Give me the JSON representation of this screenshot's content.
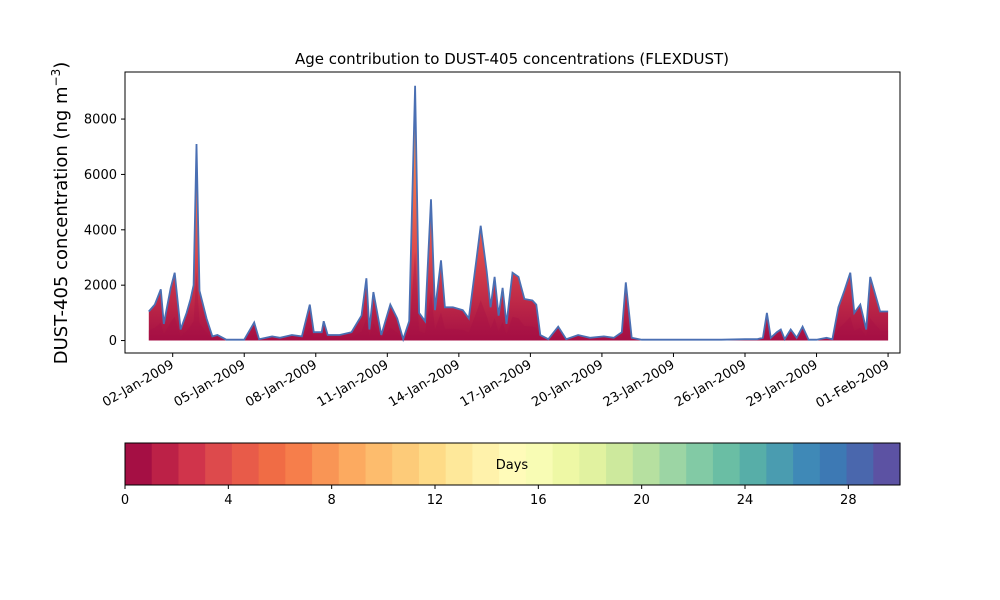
{
  "chart_data": {
    "type": "area",
    "title": "Age contribution to DUST-405 concentrations (FLEXDUST)",
    "ylabel": "DUST-405 concentration (ng m",
    "ylabel_sup": "−3",
    "ylabel_close": ")",
    "ylim": [
      -450,
      9700
    ],
    "xlim": [
      "2008-12-31",
      "2009-02-01T12:00"
    ],
    "yticks": [
      0,
      2000,
      4000,
      6000,
      8000
    ],
    "xticks": [
      "02-Jan-2009",
      "05-Jan-2009",
      "08-Jan-2009",
      "11-Jan-2009",
      "14-Jan-2009",
      "17-Jan-2009",
      "20-Jan-2009",
      "23-Jan-2009",
      "26-Jan-2009",
      "29-Jan-2009",
      "01-Feb-2009"
    ],
    "xtick_dates": [
      "2009-01-02",
      "2009-01-05",
      "2009-01-08",
      "2009-01-11",
      "2009-01-14",
      "2009-01-17",
      "2009-01-20",
      "2009-01-23",
      "2009-01-26",
      "2009-01-29",
      "2009-02-01"
    ],
    "series_total": [
      [
        "2009-01-01T00:00",
        1050
      ],
      [
        "2009-01-01T06:00",
        1300
      ],
      [
        "2009-01-01T12:00",
        1850
      ],
      [
        "2009-01-01T15:00",
        600
      ],
      [
        "2009-01-01T22:00",
        1900
      ],
      [
        "2009-01-02T02:00",
        2450
      ],
      [
        "2009-01-02T08:00",
        400
      ],
      [
        "2009-01-02T14:00",
        1000
      ],
      [
        "2009-01-02T18:00",
        1500
      ],
      [
        "2009-01-02T21:00",
        2000
      ],
      [
        "2009-01-03T00:00",
        7100
      ],
      [
        "2009-01-03T03:00",
        1800
      ],
      [
        "2009-01-03T10:00",
        800
      ],
      [
        "2009-01-03T16:00",
        150
      ],
      [
        "2009-01-03T21:00",
        200
      ],
      [
        "2009-01-04T06:00",
        30
      ],
      [
        "2009-01-05T00:00",
        30
      ],
      [
        "2009-01-05T10:00",
        650
      ],
      [
        "2009-01-05T15:00",
        50
      ],
      [
        "2009-01-06T04:00",
        150
      ],
      [
        "2009-01-06T12:00",
        100
      ],
      [
        "2009-01-07T00:00",
        200
      ],
      [
        "2009-01-07T10:00",
        150
      ],
      [
        "2009-01-07T18:00",
        1300
      ],
      [
        "2009-01-07T22:00",
        300
      ],
      [
        "2009-01-08T06:00",
        300
      ],
      [
        "2009-01-08T08:00",
        700
      ],
      [
        "2009-01-08T12:00",
        200
      ],
      [
        "2009-01-09T00:00",
        200
      ],
      [
        "2009-01-09T12:00",
        300
      ],
      [
        "2009-01-09T22:00",
        900
      ],
      [
        "2009-01-10T03:00",
        2250
      ],
      [
        "2009-01-10T06:00",
        400
      ],
      [
        "2009-01-10T10:00",
        1750
      ],
      [
        "2009-01-10T18:00",
        200
      ],
      [
        "2009-01-11T03:00",
        1300
      ],
      [
        "2009-01-11T10:00",
        800
      ],
      [
        "2009-01-11T16:00",
        50
      ],
      [
        "2009-01-11T22:00",
        700
      ],
      [
        "2009-01-12T04:00",
        9200
      ],
      [
        "2009-01-12T08:00",
        1000
      ],
      [
        "2009-01-12T14:00",
        700
      ],
      [
        "2009-01-12T20:00",
        5100
      ],
      [
        "2009-01-13T00:00",
        1100
      ],
      [
        "2009-01-13T06:00",
        2900
      ],
      [
        "2009-01-13T10:00",
        1200
      ],
      [
        "2009-01-13T18:00",
        1200
      ],
      [
        "2009-01-14T04:00",
        1100
      ],
      [
        "2009-01-14T10:00",
        800
      ],
      [
        "2009-01-14T18:00",
        3000
      ],
      [
        "2009-01-14T22:00",
        4150
      ],
      [
        "2009-01-15T04:00",
        2500
      ],
      [
        "2009-01-15T08:00",
        1200
      ],
      [
        "2009-01-15T12:00",
        2300
      ],
      [
        "2009-01-15T16:00",
        900
      ],
      [
        "2009-01-15T20:00",
        1900
      ],
      [
        "2009-01-16T00:00",
        600
      ],
      [
        "2009-01-16T06:00",
        2450
      ],
      [
        "2009-01-16T12:00",
        2300
      ],
      [
        "2009-01-16T18:00",
        1500
      ],
      [
        "2009-01-17T02:00",
        1450
      ],
      [
        "2009-01-17T06:00",
        1300
      ],
      [
        "2009-01-17T10:00",
        200
      ],
      [
        "2009-01-17T18:00",
        50
      ],
      [
        "2009-01-18T04:00",
        500
      ],
      [
        "2009-01-18T12:00",
        50
      ],
      [
        "2009-01-19T00:00",
        200
      ],
      [
        "2009-01-19T12:00",
        100
      ],
      [
        "2009-01-20T02:00",
        150
      ],
      [
        "2009-01-20T12:00",
        100
      ],
      [
        "2009-01-20T20:00",
        300
      ],
      [
        "2009-01-21T00:00",
        2100
      ],
      [
        "2009-01-21T06:00",
        100
      ],
      [
        "2009-01-21T16:00",
        30
      ],
      [
        "2009-01-22T00:00",
        30
      ],
      [
        "2009-01-24T00:00",
        30
      ],
      [
        "2009-01-25T00:00",
        30
      ],
      [
        "2009-01-26T00:00",
        50
      ],
      [
        "2009-01-26T12:00",
        50
      ],
      [
        "2009-01-26T18:00",
        100
      ],
      [
        "2009-01-26T22:00",
        1000
      ],
      [
        "2009-01-27T02:00",
        100
      ],
      [
        "2009-01-27T08:00",
        300
      ],
      [
        "2009-01-27T12:00",
        400
      ],
      [
        "2009-01-27T16:00",
        50
      ],
      [
        "2009-01-27T22:00",
        400
      ],
      [
        "2009-01-28T04:00",
        100
      ],
      [
        "2009-01-28T10:00",
        500
      ],
      [
        "2009-01-28T16:00",
        30
      ],
      [
        "2009-01-29T00:00",
        30
      ],
      [
        "2009-01-29T10:00",
        100
      ],
      [
        "2009-01-29T16:00",
        50
      ],
      [
        "2009-01-29T22:00",
        1200
      ],
      [
        "2009-01-30T04:00",
        1800
      ],
      [
        "2009-01-30T10:00",
        2450
      ],
      [
        "2009-01-30T14:00",
        1000
      ],
      [
        "2009-01-30T20:00",
        1300
      ],
      [
        "2009-01-31T02:00",
        400
      ],
      [
        "2009-01-31T06:00",
        2300
      ],
      [
        "2009-01-31T10:00",
        1800
      ],
      [
        "2009-01-31T16:00",
        1050
      ],
      [
        "2009-02-01T00:00",
        1050
      ]
    ],
    "line_color": "#4a6fb3",
    "colorbar": {
      "label": "Days",
      "range": [
        0,
        30
      ],
      "ticks": [
        0,
        4,
        8,
        12,
        16,
        20,
        24,
        28
      ],
      "colors": [
        "#a50f44",
        "#bc2147",
        "#d0344b",
        "#dd4a4c",
        "#e85b49",
        "#f06c45",
        "#f67e4b",
        "#f99555",
        "#fcaa60",
        "#fdbc6d",
        "#fdcb79",
        "#fedb87",
        "#fee89a",
        "#fff2ab",
        "#fffbb9",
        "#f8fcb4",
        "#eef8a5",
        "#e1f2a0",
        "#cde99d",
        "#b6e0a0",
        "#9cd5a4",
        "#82caa5",
        "#6abea4",
        "#57aea8",
        "#4a9cb0",
        "#3f89b7",
        "#3d79b4",
        "#4a67ad",
        "#5c52a3"
      ]
    }
  }
}
